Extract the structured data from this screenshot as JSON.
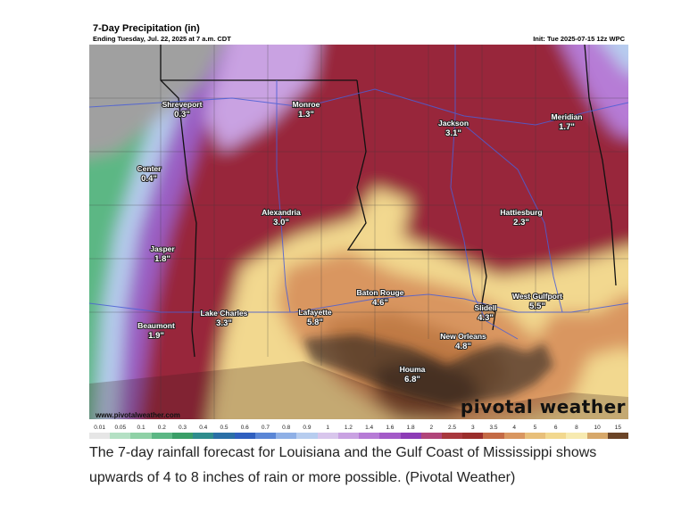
{
  "map": {
    "title": "7-Day Precipitation (in)",
    "subtitle": "Ending Tuesday, Jul. 22, 2025 at 7 a.m. CDT",
    "init": "Init: Tue 2025-07-15 12z WPC",
    "source": "www.pivotalweather.com",
    "brand": "pivotal weather",
    "cities": [
      {
        "name": "Shreveport",
        "value": "0.3\""
      },
      {
        "name": "Monroe",
        "value": "1.3\""
      },
      {
        "name": "Jackson",
        "value": "3.1\""
      },
      {
        "name": "Meridian",
        "value": "1.7\""
      },
      {
        "name": "Center",
        "value": "0.4\""
      },
      {
        "name": "Alexandria",
        "value": "3.0\""
      },
      {
        "name": "Hattiesburg",
        "value": "2.3\""
      },
      {
        "name": "Jasper",
        "value": "1.8\""
      },
      {
        "name": "Baton Rouge",
        "value": "4.6\""
      },
      {
        "name": "Lake Charles",
        "value": "3.3\""
      },
      {
        "name": "Lafayette",
        "value": "5.8\""
      },
      {
        "name": "Slidell",
        "value": "4.3\""
      },
      {
        "name": "West Gulfport",
        "value": "5.5\""
      },
      {
        "name": "Beaumont",
        "value": "1.9\""
      },
      {
        "name": "New Orleans",
        "value": "4.8\""
      },
      {
        "name": "Houma",
        "value": "6.8\""
      }
    ],
    "scale": {
      "ticks": [
        "0.01",
        "0.05",
        "0.1",
        "0.2",
        "0.3",
        "0.4",
        "0.5",
        "0.6",
        "0.7",
        "0.8",
        "0.9",
        "1",
        "1.2",
        "1.4",
        "1.6",
        "1.8",
        "2",
        "2.5",
        "3",
        "3.5",
        "4",
        "5",
        "6",
        "8",
        "10",
        "15"
      ],
      "colors": [
        "#e6e6e6",
        "#b4e0c4",
        "#8fd1a6",
        "#5cb784",
        "#3a9e67",
        "#2f8d8d",
        "#2a6fa6",
        "#2f5fbf",
        "#5a86d6",
        "#8fb0e6",
        "#b7cdef",
        "#d8c6ec",
        "#c9a2e2",
        "#b67bd6",
        "#a35ac8",
        "#8d3cb6",
        "#b0457a",
        "#a8383d",
        "#9a2e2b",
        "#c46a45",
        "#d99660",
        "#e8bf7a",
        "#f2d88f",
        "#f7eab0",
        "#d7a86a",
        "#6b4427"
      ]
    }
  },
  "caption": "The 7-day rainfall forecast for Louisiana and the Gulf Coast of Mississippi shows upwards of 4 to 8 inches of rain or more possible. (Pivotal Weather)"
}
